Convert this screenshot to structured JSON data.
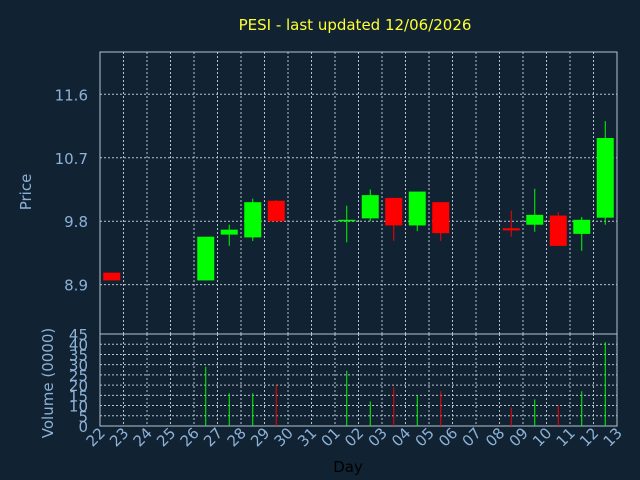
{
  "chart_data": {
    "type": "candlestick",
    "title": "PESI - last updated 12/06/2026",
    "xlabel": "Day",
    "days": [
      "22",
      "23",
      "24",
      "25",
      "26",
      "27",
      "28",
      "29",
      "30",
      "31",
      "01",
      "02",
      "03",
      "04",
      "05",
      "06",
      "07",
      "08",
      "09",
      "10",
      "11",
      "12",
      "13"
    ],
    "price_panel": {
      "ylabel": "Price",
      "ylim": [
        8.2,
        12.2
      ],
      "yticks": [
        8.9,
        9.8,
        10.7,
        11.6
      ],
      "ytick_labels": [
        "8.9",
        "9.8",
        "10.7",
        "11.6"
      ],
      "candles": [
        {
          "day": "22",
          "open": 9.07,
          "close": 8.96,
          "high": 9.07,
          "low": 8.96
        },
        {
          "day": "26",
          "open": 8.96,
          "close": 9.58,
          "high": 9.58,
          "low": 8.96
        },
        {
          "day": "27",
          "open": 9.61,
          "close": 9.68,
          "high": 9.75,
          "low": 9.45
        },
        {
          "day": "28",
          "open": 9.57,
          "close": 10.07,
          "high": 10.12,
          "low": 9.52
        },
        {
          "day": "29",
          "open": 10.09,
          "close": 9.8,
          "high": 10.1,
          "low": 9.8
        },
        {
          "day": "01",
          "open": 9.8,
          "close": 9.82,
          "high": 10.02,
          "low": 9.5
        },
        {
          "day": "02",
          "open": 9.84,
          "close": 10.17,
          "high": 10.25,
          "low": 9.8
        },
        {
          "day": "03",
          "open": 10.13,
          "close": 9.74,
          "high": 10.13,
          "low": 9.52
        },
        {
          "day": "04",
          "open": 9.74,
          "close": 10.22,
          "high": 10.22,
          "low": 9.66
        },
        {
          "day": "05",
          "open": 10.07,
          "close": 9.63,
          "high": 10.07,
          "low": 9.52
        },
        {
          "day": "08",
          "open": 9.7,
          "close": 9.67,
          "high": 9.95,
          "low": 9.58
        },
        {
          "day": "09",
          "open": 9.75,
          "close": 9.89,
          "high": 10.26,
          "low": 9.65
        },
        {
          "day": "10",
          "open": 9.88,
          "close": 9.45,
          "high": 9.93,
          "low": 9.45
        },
        {
          "day": "11",
          "open": 9.62,
          "close": 9.82,
          "high": 9.86,
          "low": 9.38
        },
        {
          "day": "12",
          "open": 9.85,
          "close": 10.98,
          "high": 11.22,
          "low": 9.75
        }
      ]
    },
    "volume_panel": {
      "ylabel": "Volume (0000)",
      "ylim": [
        0,
        45
      ],
      "yticks": [
        0,
        5,
        10,
        15,
        20,
        25,
        30,
        35,
        40,
        45
      ],
      "ytick_labels": [
        "0",
        "5",
        "10",
        "15",
        "20",
        "25",
        "30",
        "35",
        "40",
        "45"
      ],
      "bars": [
        {
          "day": "26",
          "value": 29,
          "direction": "up"
        },
        {
          "day": "27",
          "value": 16,
          "direction": "up"
        },
        {
          "day": "28",
          "value": 16,
          "direction": "up"
        },
        {
          "day": "29",
          "value": 20,
          "direction": "down"
        },
        {
          "day": "01",
          "value": 27,
          "direction": "up"
        },
        {
          "day": "02",
          "value": 12,
          "direction": "up"
        },
        {
          "day": "03",
          "value": 19,
          "direction": "down"
        },
        {
          "day": "04",
          "value": 15,
          "direction": "up"
        },
        {
          "day": "05",
          "value": 17,
          "direction": "down"
        },
        {
          "day": "08",
          "value": 9,
          "direction": "down"
        },
        {
          "day": "09",
          "value": 13,
          "direction": "up"
        },
        {
          "day": "10",
          "value": 10,
          "direction": "down"
        },
        {
          "day": "11",
          "value": 17,
          "direction": "up"
        },
        {
          "day": "12",
          "value": 41,
          "direction": "up"
        }
      ]
    },
    "colors": {
      "background": "#112233",
      "up": "#00ff00",
      "down": "#ff0000",
      "grid": "#b8c4cf",
      "title": "#ffff33",
      "tick": "#8db2d6"
    },
    "grid": true
  }
}
